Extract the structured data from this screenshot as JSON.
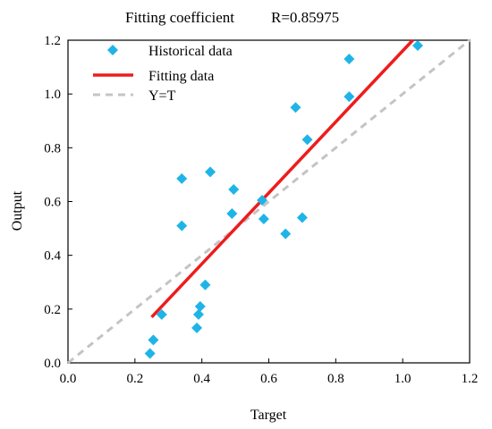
{
  "chart_data": {
    "type": "scatter",
    "title": "Fitting coefficient",
    "annotation": "R=0.85975",
    "xlabel": "Target",
    "ylabel": "Output",
    "xlim": [
      0.0,
      1.2
    ],
    "ylim": [
      0.0,
      1.2
    ],
    "xticks": [
      "0.0",
      "0.2",
      "0.4",
      "0.6",
      "0.8",
      "1.0",
      "1.2"
    ],
    "yticks": [
      "0.0",
      "0.2",
      "0.4",
      "0.6",
      "0.8",
      "1.0",
      "1.2"
    ],
    "grid": false,
    "legend_position": "top-left",
    "legend": [
      "Historical data",
      "Fitting data",
      "Y=T"
    ],
    "colors": {
      "historical": "#1fb4e8",
      "fitting": "#ee1c1c",
      "identity": "#c4c4c4"
    },
    "historical_points": [
      {
        "x": 0.245,
        "y": 0.035
      },
      {
        "x": 0.255,
        "y": 0.085
      },
      {
        "x": 0.28,
        "y": 0.18
      },
      {
        "x": 0.34,
        "y": 0.685
      },
      {
        "x": 0.34,
        "y": 0.51
      },
      {
        "x": 0.385,
        "y": 0.13
      },
      {
        "x": 0.39,
        "y": 0.18
      },
      {
        "x": 0.395,
        "y": 0.21
      },
      {
        "x": 0.41,
        "y": 0.29
      },
      {
        "x": 0.425,
        "y": 0.71
      },
      {
        "x": 0.49,
        "y": 0.555
      },
      {
        "x": 0.495,
        "y": 0.645
      },
      {
        "x": 0.58,
        "y": 0.605
      },
      {
        "x": 0.585,
        "y": 0.535
      },
      {
        "x": 0.65,
        "y": 0.48
      },
      {
        "x": 0.68,
        "y": 0.95
      },
      {
        "x": 0.7,
        "y": 0.54
      },
      {
        "x": 0.715,
        "y": 0.83
      },
      {
        "x": 0.84,
        "y": 0.99
      },
      {
        "x": 0.84,
        "y": 1.13
      },
      {
        "x": 1.045,
        "y": 1.18
      }
    ],
    "fitting_line": {
      "x": [
        0.25,
        1.03
      ],
      "y": [
        0.17,
        1.2
      ]
    },
    "identity_line": {
      "x": [
        0.0,
        1.2
      ],
      "y": [
        0.0,
        1.2
      ]
    }
  }
}
